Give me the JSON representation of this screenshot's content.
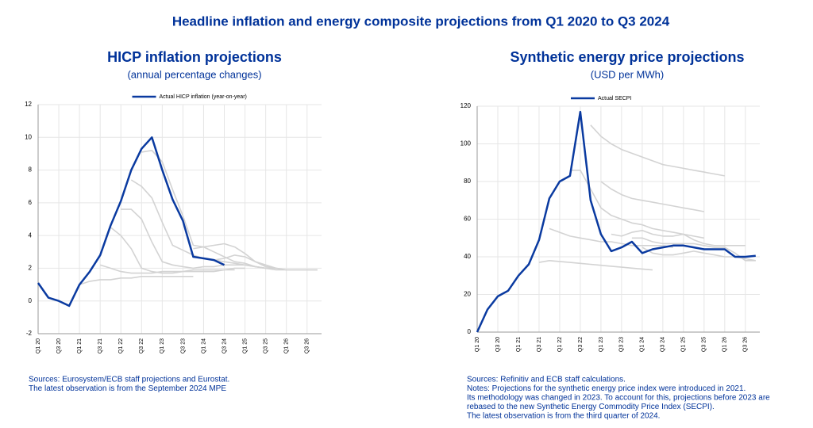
{
  "title": "Headline inflation and energy composite projections from Q1 2020 to Q3 2024",
  "chart_data": [
    {
      "type": "line",
      "title": "HICP inflation projections",
      "subtitle": "(annual percentage changes)",
      "categories": [
        "Q1 20",
        null,
        "Q3 20",
        null,
        "Q1 21",
        null,
        "Q3 21",
        null,
        "Q1 22",
        null,
        "Q3 22",
        null,
        "Q1 23",
        null,
        "Q3 23",
        null,
        "Q1 24",
        null,
        "Q3 24",
        null,
        "Q1 25",
        null,
        "Q3 25",
        null,
        "Q1 26",
        null,
        "Q3 26",
        null
      ],
      "ylim": [
        -2,
        12
      ],
      "yticks": [
        -2,
        0,
        2,
        4,
        6,
        8,
        10,
        12
      ],
      "grid": true,
      "series": [
        {
          "color": "#d3d3d3",
          "values": [
            null,
            null,
            null,
            null,
            1.0,
            1.2,
            1.3,
            1.3,
            1.4,
            1.4,
            1.5,
            1.5,
            1.5,
            1.5,
            1.5,
            1.5,
            null,
            null,
            null,
            null,
            null,
            null,
            null,
            null,
            null,
            null,
            null,
            null
          ]
        },
        {
          "color": "#d3d3d3",
          "values": [
            null,
            null,
            null,
            null,
            null,
            null,
            2.2,
            2.0,
            1.8,
            1.7,
            1.7,
            1.7,
            1.8,
            1.8,
            1.8,
            1.8,
            1.8,
            1.8,
            1.9,
            1.9,
            null,
            null,
            null,
            null,
            null,
            null,
            null,
            null
          ]
        },
        {
          "color": "#d3d3d3",
          "values": [
            null,
            null,
            null,
            null,
            null,
            null,
            null,
            4.5,
            4.0,
            3.2,
            2.0,
            1.8,
            1.7,
            1.7,
            1.8,
            1.9,
            1.9,
            1.9,
            1.9,
            2.0,
            2.0,
            null,
            null,
            null,
            null,
            null,
            null,
            null
          ]
        },
        {
          "color": "#d3d3d3",
          "values": [
            null,
            null,
            null,
            null,
            null,
            null,
            null,
            null,
            5.6,
            5.6,
            5.0,
            3.6,
            2.4,
            2.2,
            2.1,
            2.0,
            2.1,
            2.1,
            2.2,
            2.2,
            2.2,
            2.1,
            2.0,
            null,
            null,
            null,
            null,
            null
          ]
        },
        {
          "color": "#d3d3d3",
          "values": [
            null,
            null,
            null,
            null,
            null,
            null,
            null,
            null,
            null,
            7.4,
            7.0,
            6.3,
            4.8,
            3.4,
            3.1,
            2.8,
            2.6,
            2.5,
            2.4,
            2.3,
            2.2,
            2.1,
            2.0,
            2.0,
            null,
            null,
            null,
            null
          ]
        },
        {
          "color": "#d3d3d3",
          "values": [
            null,
            null,
            null,
            null,
            null,
            null,
            null,
            null,
            null,
            null,
            9.1,
            9.2,
            8.5,
            6.8,
            5.2,
            3.4,
            3.3,
            3.0,
            2.7,
            2.4,
            2.3,
            2.1,
            2.0,
            1.9,
            1.9,
            null,
            null,
            null
          ]
        },
        {
          "color": "#d3d3d3",
          "values": [
            null,
            null,
            null,
            null,
            null,
            null,
            null,
            null,
            null,
            null,
            null,
            null,
            null,
            null,
            null,
            3.2,
            3.3,
            3.4,
            3.5,
            3.3,
            2.9,
            2.4,
            2.1,
            2.0,
            1.9,
            1.9,
            1.9,
            1.9
          ]
        },
        {
          "color": "#d3d3d3",
          "values": [
            null,
            null,
            null,
            null,
            null,
            null,
            null,
            null,
            null,
            null,
            null,
            null,
            null,
            null,
            null,
            null,
            null,
            2.5,
            2.6,
            2.8,
            2.7,
            2.4,
            2.2,
            2.0,
            1.9,
            1.9,
            1.9,
            1.9
          ]
        },
        {
          "name": "Actual HICP inflation (year-on-year)",
          "color": "#0a3aa0",
          "values": [
            1.1,
            0.2,
            0.0,
            -0.3,
            1.0,
            1.8,
            2.8,
            4.6,
            6.1,
            8.0,
            9.3,
            10.0,
            8.0,
            6.2,
            4.9,
            2.7,
            2.6,
            2.5,
            2.2,
            null,
            null,
            null,
            null,
            null,
            null,
            null,
            null,
            null
          ]
        }
      ],
      "notes": [
        "Sources: Eurosystem/ECB staff projections and Eurostat.",
        "The latest observation is from the September 2024 MPE"
      ]
    },
    {
      "type": "line",
      "title": "Synthetic energy price projections",
      "subtitle": "(USD per MWh)",
      "categories": [
        "Q1 20",
        null,
        "Q3 20",
        null,
        "Q1 21",
        null,
        "Q3 21",
        null,
        "Q1 22",
        null,
        "Q3 22",
        null,
        "Q1 23",
        null,
        "Q3 23",
        null,
        "Q1 24",
        null,
        "Q3 24",
        null,
        "Q1 25",
        null,
        "Q3 25",
        null,
        "Q1 26",
        null,
        "Q3 26",
        null
      ],
      "ylim": [
        0,
        120
      ],
      "yticks": [
        0,
        20,
        40,
        60,
        80,
        100,
        120
      ],
      "grid": true,
      "series": [
        {
          "color": "#d3d3d3",
          "values": [
            null,
            null,
            null,
            null,
            null,
            null,
            37,
            38,
            37.5,
            37,
            36.5,
            36,
            35.5,
            35,
            34.5,
            34,
            33.5,
            33,
            null,
            null,
            null,
            null,
            null,
            null,
            null,
            null,
            null,
            null
          ]
        },
        {
          "color": "#d3d3d3",
          "values": [
            null,
            null,
            null,
            null,
            null,
            null,
            null,
            55,
            53,
            51,
            50,
            49,
            48,
            48,
            47,
            46,
            46,
            46,
            46,
            45,
            null,
            null,
            null,
            null,
            null,
            null,
            null,
            null
          ]
        },
        {
          "color": "#d3d3d3",
          "values": [
            null,
            null,
            null,
            null,
            null,
            null,
            null,
            null,
            null,
            86,
            86,
            76,
            66,
            62,
            60,
            58,
            57,
            55,
            54,
            53,
            52,
            51,
            50,
            null,
            null,
            null,
            null,
            null
          ]
        },
        {
          "color": "#d3d3d3",
          "values": [
            null,
            null,
            null,
            null,
            null,
            null,
            null,
            null,
            null,
            null,
            null,
            110,
            104,
            100,
            97,
            95,
            93,
            91,
            89,
            88,
            87,
            86,
            85,
            84,
            83,
            null,
            null,
            null
          ]
        },
        {
          "color": "#d3d3d3",
          "values": [
            null,
            null,
            null,
            null,
            null,
            null,
            null,
            null,
            null,
            null,
            null,
            null,
            80,
            76,
            73,
            71,
            70,
            69,
            68,
            67,
            66,
            65,
            64,
            null,
            null,
            null,
            null,
            null
          ]
        },
        {
          "color": "#d3d3d3",
          "values": [
            null,
            null,
            null,
            null,
            null,
            null,
            null,
            null,
            null,
            null,
            null,
            null,
            null,
            52,
            51,
            53,
            54,
            52,
            51,
            51,
            52,
            49,
            47,
            46,
            46,
            46,
            46,
            null
          ]
        },
        {
          "color": "#d3d3d3",
          "values": [
            null,
            null,
            null,
            null,
            null,
            null,
            null,
            null,
            null,
            null,
            null,
            null,
            null,
            null,
            null,
            50,
            50,
            48,
            47,
            47,
            47,
            47,
            46,
            45,
            45,
            42,
            38,
            38
          ]
        },
        {
          "color": "#d3d3d3",
          "values": [
            null,
            null,
            null,
            null,
            null,
            null,
            null,
            null,
            null,
            null,
            null,
            null,
            null,
            null,
            null,
            null,
            45,
            42,
            41,
            41,
            42,
            43,
            42,
            41,
            40,
            40,
            39,
            38
          ]
        },
        {
          "name": "Actual SECPI",
          "color": "#0a3aa0",
          "values": [
            0,
            12,
            19,
            22,
            30,
            36,
            49,
            71,
            80,
            83,
            117,
            70,
            52,
            43,
            45,
            48,
            42,
            44,
            45,
            46,
            46,
            45,
            44,
            44,
            44,
            40,
            40,
            40.5
          ]
        }
      ],
      "notes": [
        "Sources: Refinitiv and ECB staff calculations.",
        "Notes: Projections for the synthetic energy price index were introduced in 2021.",
        "Its methodology was changed in 2023. To account for this, projections before 2023 are",
        "rebased to the new Synthetic Energy Commodity Price Index (SECPI).",
        "The latest observation is from the third quarter of 2024."
      ]
    }
  ]
}
